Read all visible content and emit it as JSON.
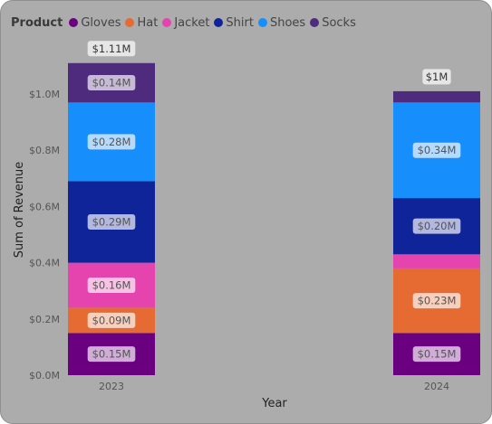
{
  "chart_data": {
    "type": "bar",
    "stacked": true,
    "legend": {
      "title": "Product",
      "placement": "top-left"
    },
    "xlabel": "Year",
    "ylabel": "Sum of Revenue",
    "ylim": [
      0,
      1.11
    ],
    "yticks": [
      {
        "value": 0.0,
        "label": "$0.0M"
      },
      {
        "value": 0.2,
        "label": "$0.2M"
      },
      {
        "value": 0.4,
        "label": "$0.4M"
      },
      {
        "value": 0.6,
        "label": "$0.6M"
      },
      {
        "value": 0.8,
        "label": "$0.8M"
      },
      {
        "value": 1.0,
        "label": "$1.0M"
      }
    ],
    "grid": false,
    "categories": [
      "2023",
      "2024"
    ],
    "series": [
      {
        "name": "Gloves",
        "color": "#6a0080",
        "values": [
          0.15,
          0.15
        ],
        "labels": [
          "$0.15M",
          "$0.15M"
        ]
      },
      {
        "name": "Hat",
        "color": "#e56b33",
        "values": [
          0.09,
          0.23
        ],
        "labels": [
          "$0.09M",
          "$0.23M"
        ]
      },
      {
        "name": "Jacket",
        "color": "#e544af",
        "values": [
          0.16,
          0.05
        ],
        "labels": [
          "$0.16M",
          ""
        ]
      },
      {
        "name": "Shirt",
        "color": "#10249a",
        "values": [
          0.29,
          0.2
        ],
        "labels": [
          "$0.29M",
          "$0.20M"
        ]
      },
      {
        "name": "Shoes",
        "color": "#168efc",
        "values": [
          0.28,
          0.34
        ],
        "labels": [
          "$0.28M",
          "$0.34M"
        ]
      },
      {
        "name": "Socks",
        "color": "#4f2b7e",
        "values": [
          0.14,
          0.04
        ],
        "labels": [
          "$0.14M",
          ""
        ]
      }
    ],
    "totals": [
      {
        "value": 1.11,
        "label": "$1.11M"
      },
      {
        "value": 1.0,
        "label": "$1M"
      }
    ]
  }
}
